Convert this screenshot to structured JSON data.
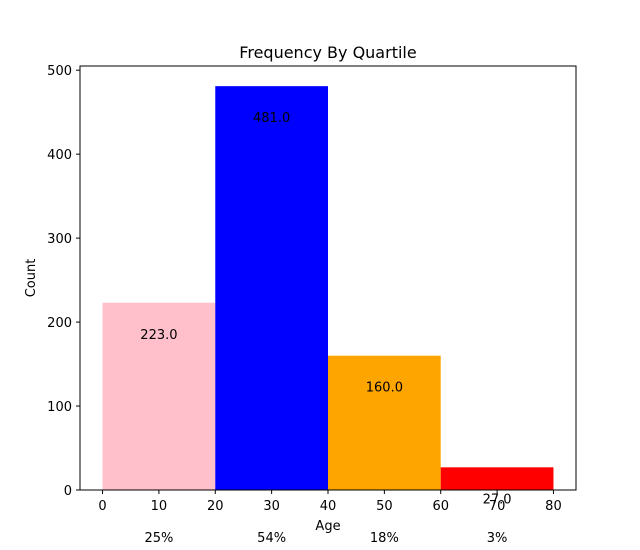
{
  "chart_data": {
    "type": "bar",
    "title": "Frequency By Quartile",
    "xlabel": "Age",
    "ylabel": "Count",
    "xlim": [
      -4,
      84
    ],
    "ylim": [
      0,
      505
    ],
    "xticks": [
      0,
      10,
      20,
      30,
      40,
      50,
      60,
      70,
      80
    ],
    "yticks": [
      0,
      100,
      200,
      300,
      400,
      500
    ],
    "grid": false,
    "bars": [
      {
        "x0": 0,
        "x1": 20,
        "value": 223,
        "label": "223.0",
        "percent": "25%",
        "color": "#ffc0cb"
      },
      {
        "x0": 20,
        "x1": 40,
        "value": 481,
        "label": "481.0",
        "percent": "54%",
        "color": "#0000ff"
      },
      {
        "x0": 40,
        "x1": 60,
        "value": 160,
        "label": "160.0",
        "percent": "18%",
        "color": "#ffa500"
      },
      {
        "x0": 60,
        "x1": 80,
        "value": 27,
        "label": "27.0",
        "percent": "3%",
        "color": "#ff0000"
      }
    ]
  }
}
